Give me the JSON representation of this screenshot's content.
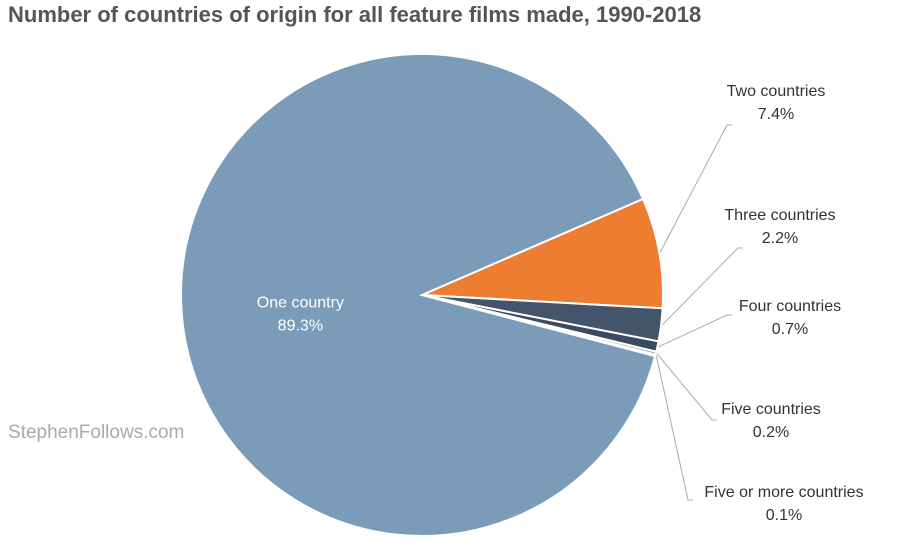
{
  "chart_data": {
    "type": "pie",
    "title": "Number of countries of origin for all feature films made, 1990-2018",
    "watermark": "StephenFollows.com",
    "categories": [
      "Two countries",
      "Three countries",
      "Four countries",
      "Five countries",
      "Five or more countries",
      "One country"
    ],
    "values": [
      7.4,
      2.2,
      0.7,
      0.2,
      0.1,
      89.3
    ],
    "value_labels": [
      "7.4%",
      "2.2%",
      "0.7%",
      "0.2%",
      "0.1%",
      "89.3%"
    ],
    "colors": [
      "#ed7d31",
      "#44546a",
      "#3a4a60",
      "#9aa9b8",
      "#c9d3dc",
      "#7a9cb8"
    ]
  }
}
